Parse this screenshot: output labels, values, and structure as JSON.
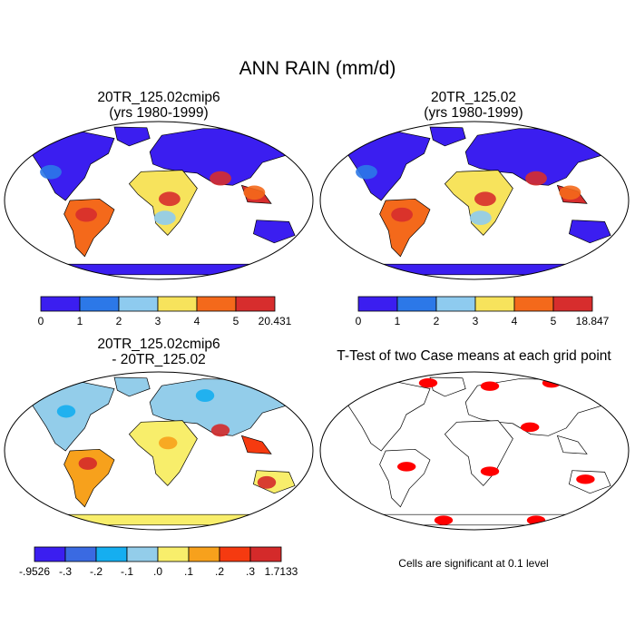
{
  "title": "ANN RAIN (mm/d)",
  "panels": [
    {
      "title": "20TR_125.02cmip6",
      "subtitle": "(yrs 1980-1999)"
    },
    {
      "title": "20TR_125.02",
      "subtitle": "(yrs 1980-1999)"
    },
    {
      "title": "20TR_125.02cmip6",
      "subtitle": "- 20TR_125.02"
    },
    {
      "title": "T-Test of two Case means at each grid point",
      "subtitle": ""
    }
  ],
  "colorbars": [
    {
      "labels": [
        "0",
        "1",
        "2",
        "3",
        "4",
        "5",
        "20.431"
      ],
      "colors": [
        "#3b1ef0",
        "#2c78e8",
        "#8ecbef",
        "#f7e35c",
        "#f4691b",
        "#d72d2d"
      ]
    },
    {
      "labels": [
        "0",
        "1",
        "2",
        "3",
        "4",
        "5",
        "18.847"
      ],
      "colors": [
        "#3b1ef0",
        "#2c78e8",
        "#8ecbef",
        "#f7e35c",
        "#f4691b",
        "#d72d2d"
      ]
    },
    {
      "labels": [
        "-.9526",
        "-.3",
        "-.2",
        "-.1",
        ".0",
        ".1",
        ".2",
        ".3",
        "1.7133"
      ],
      "colors": [
        "#3b1ef0",
        "#3a6ae2",
        "#15aef0",
        "#93cdea",
        "#f8ee6b",
        "#f7a11c",
        "#f53a10",
        "#d42a2a"
      ]
    }
  ],
  "note": "Cells are significant at 0.1 level",
  "chart_data": [
    {
      "type": "heatmap",
      "title": "20TR_125.02cmip6",
      "subtitle": "(yrs 1980-1999)",
      "variable": "ANN RAIN (mm/d)",
      "levels": [
        0,
        1,
        2,
        3,
        4,
        5
      ],
      "min": 0,
      "max": 20.431
    },
    {
      "type": "heatmap",
      "title": "20TR_125.02",
      "subtitle": "(yrs 1980-1999)",
      "variable": "ANN RAIN (mm/d)",
      "levels": [
        0,
        1,
        2,
        3,
        4,
        5
      ],
      "min": 0,
      "max": 18.847
    },
    {
      "type": "heatmap",
      "title": "20TR_125.02cmip6",
      "subtitle": "- 20TR_125.02",
      "variable": "ANN RAIN (mm/d)",
      "levels": [
        -0.3,
        -0.2,
        -0.1,
        0.0,
        0.1,
        0.2,
        0.3
      ],
      "min": -0.9526,
      "max": 1.7133
    },
    {
      "type": "heatmap",
      "title": "T-Test of two Case means at each grid point",
      "significance_level": 0.1,
      "significant_color": "#ff0000"
    }
  ]
}
